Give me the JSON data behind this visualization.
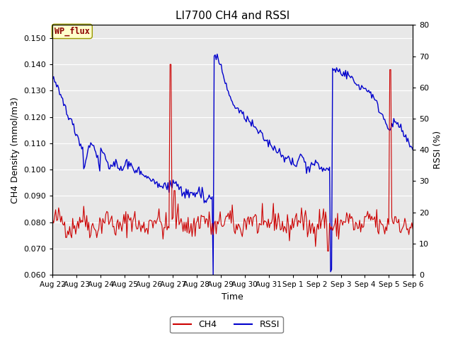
{
  "title": "LI7700 CH4 and RSSI",
  "xlabel": "Time",
  "ylabel_left": "CH4 Density (mmol/m3)",
  "ylabel_right": "RSSI (%)",
  "ylim_left": [
    0.06,
    0.155
  ],
  "ylim_right": [
    0,
    80
  ],
  "yticks_left": [
    0.06,
    0.07,
    0.08,
    0.09,
    0.1,
    0.11,
    0.12,
    0.13,
    0.14,
    0.15
  ],
  "yticks_right": [
    0,
    10,
    20,
    30,
    40,
    50,
    60,
    70,
    80
  ],
  "xtick_labels": [
    "Aug 22",
    "Aug 23",
    "Aug 24",
    "Aug 25",
    "Aug 26",
    "Aug 27",
    "Aug 28",
    "Aug 29",
    "Aug 30",
    "Aug 31",
    "Sep 1",
    "Sep 2",
    "Sep 3",
    "Sep 4",
    "Sep 5",
    "Sep 6"
  ],
  "annotation_text": "WP_flux",
  "bg_color": "#e8e8e8",
  "ch4_color": "#cc0000",
  "rssi_color": "#0000cc",
  "legend_ch4": "CH4",
  "legend_rssi": "RSSI",
  "title_fontsize": 11,
  "axis_fontsize": 9,
  "tick_fontsize": 8
}
